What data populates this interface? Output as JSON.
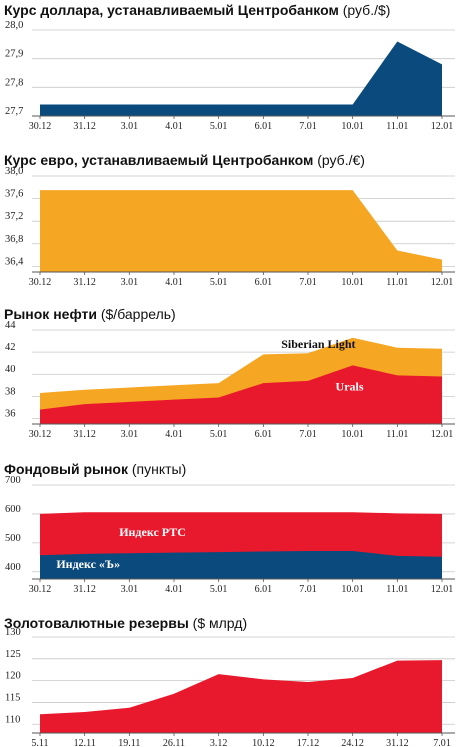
{
  "chart_data": [
    {
      "type": "area",
      "title": "Курс доллара, устанавливаемый Центробанком",
      "title_unit": "(руб./$)",
      "categories": [
        "30.12",
        "31.12",
        "3.01",
        "4.01",
        "5.01",
        "6.01",
        "7.01",
        "10.01",
        "11.01",
        "12.01"
      ],
      "y_ticks": [
        "28,0",
        "27,9",
        "27,8",
        "27,7"
      ],
      "ylim": [
        27.7,
        28.0
      ],
      "series": [
        {
          "color": "#0b4a7d",
          "values": [
            27.74,
            27.74,
            27.74,
            27.74,
            27.74,
            27.74,
            27.74,
            27.74,
            27.96,
            27.88
          ]
        }
      ]
    },
    {
      "type": "area",
      "title": "Курс евро, устанавливаемый Центробанком",
      "title_unit": "(руб./€)",
      "categories": [
        "30.12",
        "31.12",
        "3.01",
        "4.01",
        "5.01",
        "6.01",
        "7.01",
        "10.01",
        "11.01",
        "12.01"
      ],
      "y_ticks": [
        "38,0",
        "37,6",
        "37,2",
        "36,8",
        "36,4"
      ],
      "ylim": [
        36.3,
        38.0
      ],
      "series": [
        {
          "color": "#f5a623",
          "values": [
            37.75,
            37.75,
            37.75,
            37.75,
            37.75,
            37.75,
            37.75,
            37.75,
            36.68,
            36.52
          ]
        }
      ]
    },
    {
      "type": "area",
      "title": "Рынок нефти",
      "title_unit": "($/баррель)",
      "categories": [
        "30.12",
        "31.12",
        "3.01",
        "4.01",
        "5.01",
        "6.01",
        "7.01",
        "10.01",
        "11.01",
        "12.01"
      ],
      "y_ticks": [
        "44",
        "42",
        "40",
        "38",
        "36"
      ],
      "ylim": [
        35.5,
        44.0
      ],
      "series": [
        {
          "name": "Siberian Light",
          "color": "#f5a623",
          "values": [
            38.3,
            38.6,
            38.8,
            39.0,
            39.2,
            41.8,
            41.9,
            43.3,
            42.4,
            42.3
          ]
        },
        {
          "name": "Urals",
          "color": "#e8192c",
          "values": [
            36.8,
            37.3,
            37.5,
            37.7,
            37.9,
            39.2,
            39.4,
            40.8,
            39.9,
            39.8
          ]
        }
      ]
    },
    {
      "type": "area",
      "title": "Фондовый рынок",
      "title_unit": "(пункты)",
      "categories": [
        "30.12",
        "31.12",
        "3.01",
        "4.01",
        "5.01",
        "6.01",
        "7.01",
        "10.01",
        "11.01",
        "12.01"
      ],
      "y_ticks": [
        "700",
        "600",
        "500",
        "400"
      ],
      "ylim": [
        375,
        700
      ],
      "series": [
        {
          "name": "Индекс РТС",
          "color": "#e8192c",
          "values": [
            600,
            606,
            606,
            606,
            606,
            606,
            606,
            606,
            602,
            600
          ]
        },
        {
          "name": "Индекс «Ъ»",
          "color": "#0b4a7d",
          "values": [
            457,
            462,
            464,
            466,
            468,
            470,
            472,
            472,
            455,
            452
          ]
        }
      ]
    },
    {
      "type": "area",
      "title": "Золотовалютные резервы",
      "title_unit": "($ млрд)",
      "categories": [
        "5.11",
        "12.11",
        "19.11",
        "26.11",
        "3.12",
        "10.12",
        "17.12",
        "24.12",
        "31.12",
        "7.01"
      ],
      "y_ticks": [
        "130",
        "125",
        "120",
        "115",
        "110"
      ],
      "ylim": [
        108,
        130
      ],
      "series": [
        {
          "color": "#e8192c",
          "values": [
            112.3,
            112.8,
            113.8,
            117.0,
            121.5,
            120.3,
            119.7,
            120.6,
            124.6,
            124.7
          ]
        }
      ]
    }
  ]
}
